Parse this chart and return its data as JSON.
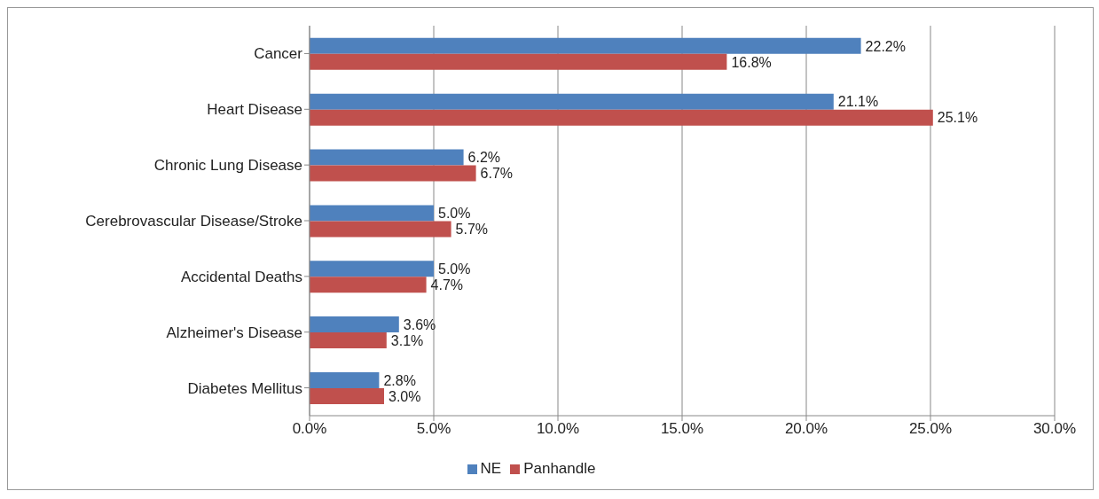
{
  "chart_data": {
    "type": "bar",
    "orientation": "horizontal",
    "categories": [
      "Cancer",
      "Heart Disease",
      "Chronic Lung Disease",
      "Cerebrovascular Disease/Stroke",
      "Accidental Deaths",
      "Alzheimer's Disease",
      "Diabetes Mellitus"
    ],
    "series": [
      {
        "name": "NE",
        "color": "#4f81bd",
        "values": [
          22.2,
          21.1,
          6.2,
          5.0,
          5.0,
          3.6,
          2.8
        ],
        "value_labels": [
          "22.2%",
          "21.1%",
          "6.2%",
          "5.0%",
          "5.0%",
          "3.6%",
          "2.8%"
        ]
      },
      {
        "name": "Panhandle",
        "color": "#c0504d",
        "values": [
          16.8,
          25.1,
          6.7,
          5.7,
          4.7,
          3.1,
          3.0
        ],
        "value_labels": [
          "16.8%",
          "25.1%",
          "6.7%",
          "5.7%",
          "4.7%",
          "3.1%",
          "3.0%"
        ]
      }
    ],
    "xlim": [
      0,
      30
    ],
    "xticks": [
      {
        "value": 0,
        "label": "0.0%"
      },
      {
        "value": 5,
        "label": "5.0%"
      },
      {
        "value": 10,
        "label": "10.0%"
      },
      {
        "value": 15,
        "label": "15.0%"
      },
      {
        "value": 20,
        "label": "20.0%"
      },
      {
        "value": 25,
        "label": "25.0%"
      },
      {
        "value": 30,
        "label": "30.0%"
      }
    ],
    "grid": "x",
    "legend": "bottom"
  }
}
